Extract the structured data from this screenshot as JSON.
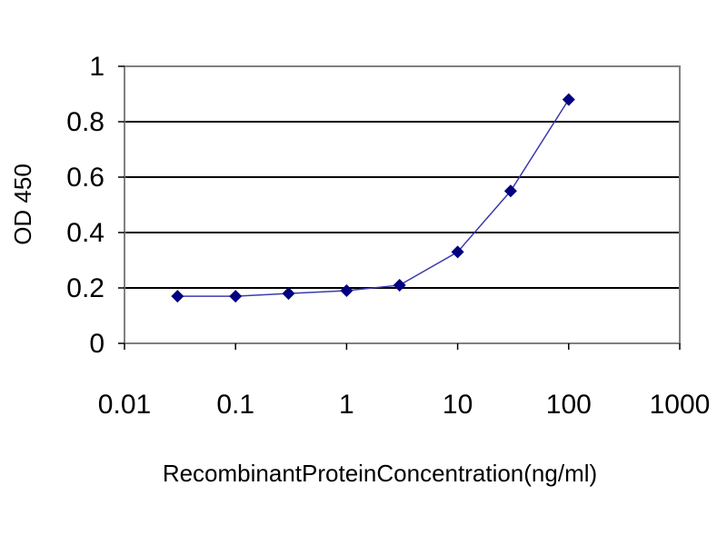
{
  "chart_data": {
    "type": "line",
    "title": "",
    "xlabel": "RecombinantProteinConcentration(ng/ml)",
    "ylabel": "OD 450",
    "x_scale": "log",
    "xlim": [
      0.01,
      1000
    ],
    "ylim": [
      0,
      1
    ],
    "x_ticks": [
      "0.01",
      "0.1",
      "1",
      "10",
      "100",
      "1000"
    ],
    "y_ticks": [
      "0",
      "0.2",
      "0.4",
      "0.6",
      "0.8",
      "1"
    ],
    "grid": "horizontal",
    "colors": {
      "line": "#3b3bb0",
      "marker": "#000080",
      "grid": "#000000"
    },
    "series": [
      {
        "x": [
          0.03,
          0.1,
          0.3,
          1,
          3,
          10,
          30,
          100
        ],
        "y": [
          0.17,
          0.17,
          0.18,
          0.19,
          0.21,
          0.33,
          0.55,
          0.88
        ]
      }
    ]
  }
}
